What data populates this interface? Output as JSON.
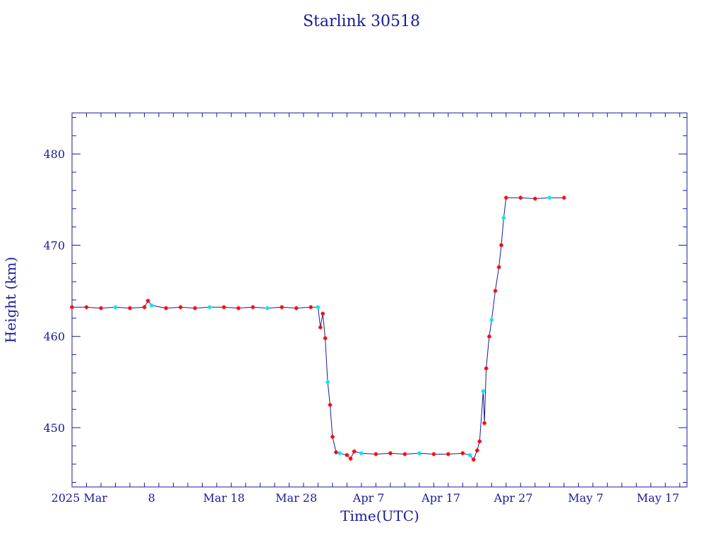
{
  "chart_data": {
    "type": "line",
    "title": "Starlink 30518",
    "xlabel": "Time(UTC)",
    "ylabel": "Height (km)",
    "x_axis": {
      "unit": "date",
      "range": [
        "2025-02-25",
        "2025-05-21"
      ],
      "ticks": [
        {
          "date": "2025-02-26",
          "label": "2025 Mar"
        },
        {
          "date": "2025-03-08",
          "label": "8"
        },
        {
          "date": "2025-03-18",
          "label": "Mar 18"
        },
        {
          "date": "2025-03-28",
          "label": "Mar 28"
        },
        {
          "date": "2025-04-07",
          "label": "Apr  7"
        },
        {
          "date": "2025-04-17",
          "label": "Apr 17"
        },
        {
          "date": "2025-04-27",
          "label": "Apr 27"
        },
        {
          "date": "2025-05-07",
          "label": "May  7"
        },
        {
          "date": "2025-05-17",
          "label": "May 17"
        }
      ]
    },
    "y_axis": {
      "range": [
        443.5,
        484.5
      ],
      "major_ticks": [
        450,
        460,
        470,
        480
      ],
      "tick_labels": [
        "450",
        "460",
        "470",
        "480"
      ],
      "minor_step": 2
    },
    "colors": {
      "axis": "#1a1a99",
      "line": "#1a1a99",
      "marker_primary": "#ff0000",
      "marker_secondary": "#00e5ee"
    },
    "series": [
      {
        "points": [
          [
            "2025-02-25",
            463.2
          ],
          [
            "2025-02-27",
            463.2
          ],
          [
            "2025-03-01",
            463.1
          ],
          [
            "2025-03-03",
            463.2
          ],
          [
            "2025-03-05",
            463.1
          ],
          [
            "2025-03-07",
            463.2
          ],
          [
            "2025-03-07T12",
            463.9
          ],
          [
            "2025-03-08",
            463.4
          ],
          [
            "2025-03-10",
            463.1
          ],
          [
            "2025-03-12",
            463.2
          ],
          [
            "2025-03-14",
            463.1
          ],
          [
            "2025-03-16",
            463.2
          ],
          [
            "2025-03-18",
            463.2
          ],
          [
            "2025-03-20",
            463.1
          ],
          [
            "2025-03-22",
            463.2
          ],
          [
            "2025-03-24",
            463.1
          ],
          [
            "2025-03-26",
            463.2
          ],
          [
            "2025-03-28",
            463.1
          ],
          [
            "2025-03-30",
            463.2
          ],
          [
            "2025-03-31",
            463.2
          ],
          [
            "2025-03-31T08",
            461.0
          ],
          [
            "2025-03-31T16",
            462.5
          ],
          [
            "2025-04-01",
            459.8
          ],
          [
            "2025-04-01T08",
            455.0
          ],
          [
            "2025-04-01T16",
            452.5
          ],
          [
            "2025-04-02",
            449.0
          ],
          [
            "2025-04-02T12",
            447.3
          ],
          [
            "2025-04-03",
            447.2
          ],
          [
            "2025-04-04",
            447.0
          ],
          [
            "2025-04-04T12",
            446.6
          ],
          [
            "2025-04-05",
            447.4
          ],
          [
            "2025-04-06",
            447.2
          ],
          [
            "2025-04-08",
            447.1
          ],
          [
            "2025-04-10",
            447.2
          ],
          [
            "2025-04-12",
            447.1
          ],
          [
            "2025-04-14",
            447.2
          ],
          [
            "2025-04-16",
            447.1
          ],
          [
            "2025-04-18",
            447.1
          ],
          [
            "2025-04-20",
            447.2
          ],
          [
            "2025-04-21",
            447.0
          ],
          [
            "2025-04-21T12",
            446.5
          ],
          [
            "2025-04-22",
            447.5
          ],
          [
            "2025-04-22T08",
            448.5
          ],
          [
            "2025-04-22T20",
            454.0
          ],
          [
            "2025-04-23",
            450.5
          ],
          [
            "2025-04-23T06",
            456.5
          ],
          [
            "2025-04-23T16",
            460.0
          ],
          [
            "2025-04-24",
            461.8
          ],
          [
            "2025-04-24T12",
            465.0
          ],
          [
            "2025-04-25",
            467.6
          ],
          [
            "2025-04-25T08",
            470.0
          ],
          [
            "2025-04-25T16",
            473.0
          ],
          [
            "2025-04-26",
            475.2
          ],
          [
            "2025-04-28",
            475.2
          ],
          [
            "2025-04-30",
            475.1
          ],
          [
            "2025-05-02",
            475.2
          ],
          [
            "2025-05-04",
            475.2
          ]
        ]
      }
    ]
  }
}
